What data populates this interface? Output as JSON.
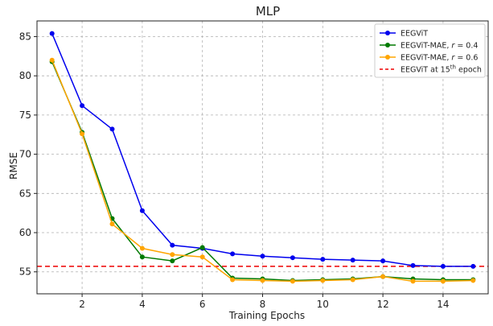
{
  "chart_data": {
    "type": "line",
    "title": "MLP",
    "xlabel": "Training Epochs",
    "ylabel": "RMSE",
    "xlim": [
      0.5,
      15.5
    ],
    "ylim": [
      52.2,
      87.0
    ],
    "xticks": [
      2,
      4,
      6,
      8,
      10,
      12,
      14
    ],
    "yticks": [
      55,
      60,
      65,
      70,
      75,
      80,
      85
    ],
    "grid": true,
    "legend_position": "top-right",
    "x": [
      1,
      2,
      3,
      4,
      5,
      6,
      7,
      8,
      9,
      10,
      11,
      12,
      13,
      14,
      15
    ],
    "series": [
      {
        "name": "EEGViT",
        "legend_html": "EEGViT",
        "color": "#0000ee",
        "values": [
          85.4,
          76.2,
          73.2,
          62.8,
          58.4,
          58.0,
          57.3,
          57.0,
          56.8,
          56.6,
          56.5,
          56.4,
          55.8,
          55.7,
          55.7
        ]
      },
      {
        "name": "EEGViT-MAE, r = 0.4",
        "legend_html": "EEGViT-MAE, <tspan font-style='italic'>r</tspan> = 0.4",
        "color": "#007a00",
        "values": [
          81.8,
          72.8,
          61.8,
          56.9,
          56.4,
          58.1,
          54.2,
          54.1,
          53.9,
          54.0,
          54.1,
          54.4,
          54.1,
          54.0,
          54.0
        ]
      },
      {
        "name": "EEGViT-MAE, r = 0.6",
        "legend_html": "EEGViT-MAE, <tspan font-style='italic'>r</tspan> = 0.6",
        "color": "#ffa500",
        "values": [
          82.0,
          72.6,
          61.1,
          58.0,
          57.2,
          56.9,
          54.0,
          53.9,
          53.8,
          53.9,
          54.0,
          54.4,
          53.8,
          53.8,
          53.9
        ]
      }
    ],
    "reference_line": {
      "name": "EEGViT at 15th epoch",
      "legend_html": "EEGViT at 15<tspan baseline-shift='super' font-size='7'>th</tspan> epoch",
      "color": "#ee0000",
      "value": 55.7
    }
  }
}
